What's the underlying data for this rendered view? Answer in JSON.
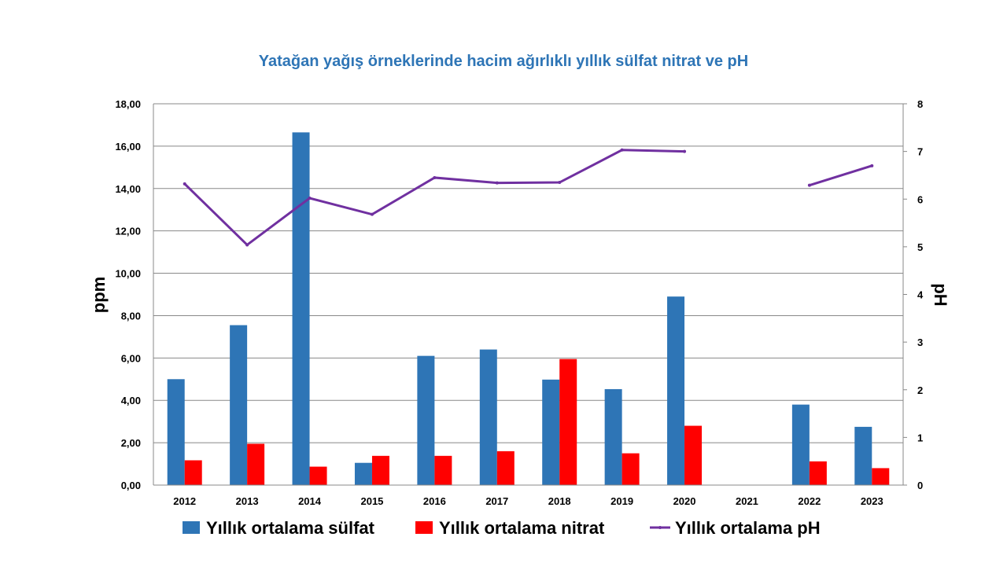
{
  "chart_data": {
    "type": "bar",
    "title": "Yatağan yağış örneklerinde hacim ağırlıklı yıllık sülfat nitrat ve pH",
    "categories": [
      "2012",
      "2013",
      "2014",
      "2015",
      "2016",
      "2017",
      "2018",
      "2019",
      "2020",
      "2021",
      "2022",
      "2023"
    ],
    "ylabel": "ppm",
    "y2label": "pH",
    "ylim": [
      0,
      18
    ],
    "y2lim": [
      0,
      8
    ],
    "yticks": [
      "0,00",
      "2,00",
      "4,00",
      "6,00",
      "8,00",
      "10,00",
      "12,00",
      "14,00",
      "16,00",
      "18,00"
    ],
    "y2ticks": [
      "0",
      "1",
      "2",
      "3",
      "4",
      "5",
      "6",
      "7",
      "8"
    ],
    "grid": true,
    "legend_position": "bottom",
    "series": [
      {
        "name": "Yıllık ortalama sülfat",
        "type": "bar",
        "axis": "left",
        "color": "#2e75b6",
        "values": [
          5.0,
          7.55,
          16.65,
          1.05,
          6.1,
          6.4,
          4.98,
          4.53,
          8.9,
          null,
          3.8,
          2.75
        ]
      },
      {
        "name": "Yıllık ortalama nitrat",
        "type": "bar",
        "axis": "left",
        "color": "#ff0000",
        "values": [
          1.17,
          1.95,
          0.87,
          1.38,
          1.38,
          1.6,
          5.95,
          1.5,
          2.8,
          null,
          1.12,
          0.8
        ]
      },
      {
        "name": "Yıllık ortalama pH",
        "type": "line",
        "axis": "right",
        "color": "#7030a0",
        "values": [
          6.32,
          5.04,
          6.02,
          5.68,
          6.45,
          6.34,
          6.35,
          7.03,
          7.0,
          null,
          6.29,
          6.7
        ]
      }
    ]
  }
}
